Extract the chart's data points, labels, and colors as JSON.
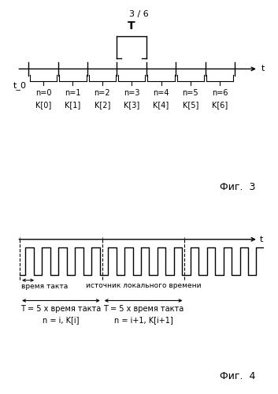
{
  "page_label": "3 / 6",
  "fig3_title": "Фиг.  3",
  "fig4_title": "Фиг.  4",
  "fig3_t0_label": "t_0",
  "fig3_t_label": "t",
  "fig3_T_label": "T",
  "fig3_n_labels": [
    "n=0",
    "n=1",
    "n=2",
    "n=3",
    "n=4",
    "n=5",
    "n=6"
  ],
  "fig3_K_labels": [
    "K[0]",
    "K[1]",
    "K[2]",
    "K[3]",
    "K[4]",
    "K[5]",
    "K[6]"
  ],
  "fig3_tick_positions": [
    0,
    1,
    2,
    3,
    4,
    5,
    6,
    7
  ],
  "fig4_t_label": "t",
  "fig4_label1": "время такта",
  "fig4_label2": "источник локального времени",
  "fig4_text1_line1": "T = 5 x время такта",
  "fig4_text1_line2": "n = i, K[i]",
  "fig4_text2_line1": "T = 5 x время такта",
  "fig4_text2_line2": "n = i+1, K[i+1]",
  "bg_color": "#ffffff",
  "line_color": "#000000",
  "text_color": "#000000"
}
